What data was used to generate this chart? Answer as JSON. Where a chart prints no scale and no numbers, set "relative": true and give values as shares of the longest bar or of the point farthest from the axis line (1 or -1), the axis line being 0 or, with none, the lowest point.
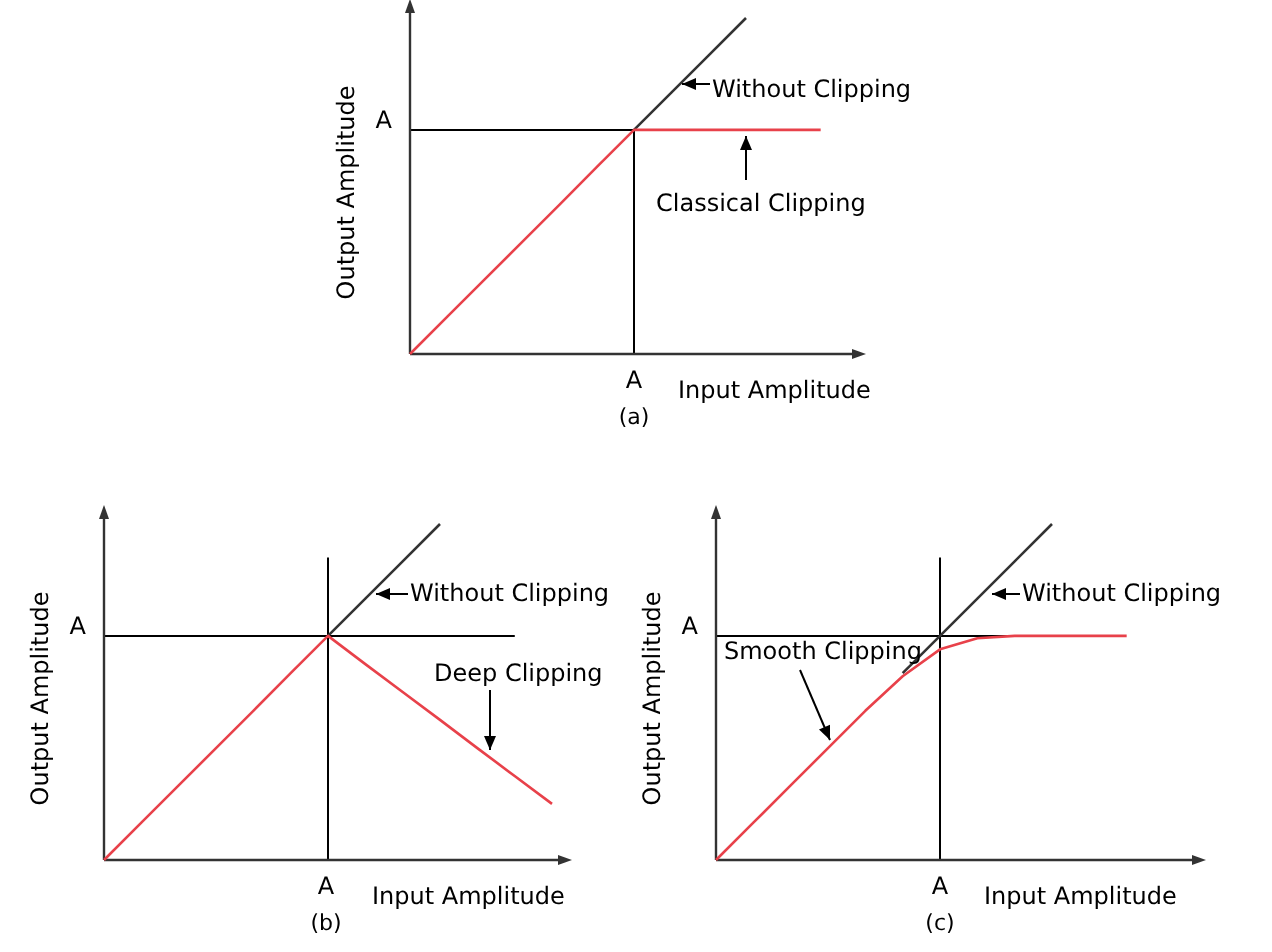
{
  "chart_data": [
    {
      "type": "line",
      "relative": true,
      "xlabel": "Input Amplitude",
      "ylabel": "Output Amplitude",
      "line_style": "solid",
      "categories": [
        null,
        null,
        null,
        null,
        null,
        null,
        null,
        null,
        null,
        null,
        null,
        null,
        null
      ],
      "series": [
        {
          "color": "#333333",
          "values": [
            null,
            null,
            null,
            null,
            null,
            null,
            0.667,
            0.778,
            0.889,
            1,
            null,
            null,
            null
          ]
        },
        {
          "color": "#e8414a",
          "values": [
            0,
            0.111,
            0.222,
            0.333,
            0.444,
            0.556,
            0.667,
            0.667,
            0.667,
            0.667,
            0.667,
            0.667,
            null
          ]
        }
      ],
      "ref_lines": [
        {
          "axis": "y",
          "value": 0.667,
          "label": "A",
          "color": "#000000"
        }
      ],
      "annotations": [
        "Without Clipping",
        "Classical Clipping",
        "(a)",
        "A"
      ]
    },
    {
      "type": "line",
      "relative": true,
      "xlabel": "Input Amplitude",
      "ylabel": "Output Amplitude",
      "line_style": "solid",
      "categories": [
        null,
        null,
        null,
        null,
        null,
        null,
        null,
        null,
        null,
        null,
        null,
        null,
        null
      ],
      "series": [
        {
          "color": "#333333",
          "values": [
            null,
            null,
            null,
            null,
            null,
            null,
            0.667,
            0.778,
            0.889,
            1,
            null,
            null,
            null
          ]
        },
        {
          "color": "#e8414a",
          "values": [
            0,
            0.111,
            0.222,
            0.333,
            0.444,
            0.556,
            0.667,
            0.583,
            0.5,
            0.417,
            0.333,
            0.25,
            0.167
          ]
        }
      ],
      "ref_lines": [
        {
          "axis": "y",
          "value": 0.667,
          "label": "A",
          "color": "#000000"
        }
      ],
      "annotations": [
        "Without Clipping",
        "Deep Clipping",
        "(b)",
        "A"
      ]
    },
    {
      "type": "line",
      "relative": true,
      "xlabel": "Input Amplitude",
      "ylabel": "Output Amplitude",
      "line_style": "solid",
      "categories": [
        null,
        null,
        null,
        null,
        null,
        null,
        null,
        null,
        null,
        null,
        null,
        null,
        null
      ],
      "series": [
        {
          "color": "#333333",
          "values": [
            null,
            null,
            null,
            null,
            null,
            0.556,
            0.667,
            0.778,
            0.889,
            1,
            null,
            null,
            null
          ]
        },
        {
          "color": "#e8414a",
          "values": [
            0,
            0.111,
            0.222,
            0.333,
            0.444,
            0.547,
            0.627,
            0.66,
            0.667,
            0.667,
            0.667,
            0.667,
            null
          ]
        }
      ],
      "ref_lines": [
        {
          "axis": "y",
          "value": 0.667,
          "label": "A",
          "color": "#000000"
        }
      ],
      "annotations": [
        "Without Clipping",
        "Smooth Clipping",
        "(c)",
        "A"
      ]
    }
  ]
}
